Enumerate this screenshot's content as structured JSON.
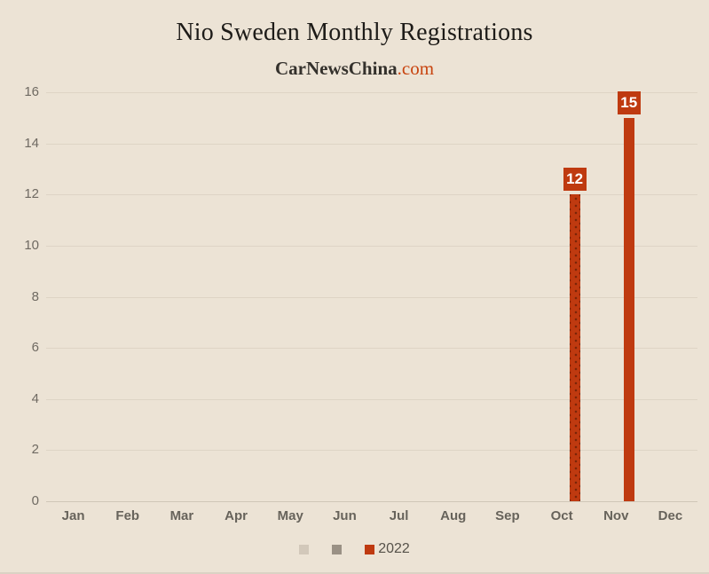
{
  "subtitle": {
    "brand": "CarNewsChina",
    "suffix": ".com"
  },
  "colors": {
    "background": "#ece3d5",
    "gridline": "#ded4c5",
    "axis_zero_line": "#d0c7b8",
    "axis_text": "#6f6a62",
    "title_text": "#1d1b18",
    "brand_accent": "#c8440f",
    "bar_2022": "#bf3a10",
    "bar_dot": "#7c2508",
    "legend_muted_1": "#d2c8ba",
    "legend_muted_2": "#9a9185",
    "badge_text": "#ffffff"
  },
  "chart_data": {
    "type": "bar",
    "title": "Nio Sweden Monthly Registrations",
    "categories": [
      "Jan",
      "Feb",
      "Mar",
      "Apr",
      "May",
      "Jun",
      "Jul",
      "Aug",
      "Sep",
      "Oct",
      "Nov",
      "Dec"
    ],
    "series": [
      {
        "name": "",
        "color": "#d2c8ba",
        "values": [
          null,
          null,
          null,
          null,
          null,
          null,
          null,
          null,
          null,
          null,
          null,
          null
        ],
        "bar_styles": [
          null,
          null,
          null,
          null,
          null,
          null,
          null,
          null,
          null,
          null,
          null,
          null
        ]
      },
      {
        "name": "",
        "color": "#9a9185",
        "values": [
          null,
          null,
          null,
          null,
          null,
          null,
          null,
          null,
          null,
          null,
          null,
          null
        ],
        "bar_styles": [
          null,
          null,
          null,
          null,
          null,
          null,
          null,
          null,
          null,
          null,
          null,
          null
        ]
      },
      {
        "name": "2022",
        "color": "#bf3a10",
        "values": [
          null,
          null,
          null,
          null,
          null,
          null,
          null,
          null,
          null,
          12,
          15,
          null
        ],
        "bar_styles": [
          null,
          null,
          null,
          null,
          null,
          null,
          null,
          null,
          null,
          "dotted",
          "solid",
          null
        ]
      }
    ],
    "ylabel": "",
    "xlabel": "",
    "ylim": [
      0,
      16
    ],
    "ytick_step": 2,
    "grid": true,
    "data_labels": true,
    "legend_position": "bottom"
  }
}
